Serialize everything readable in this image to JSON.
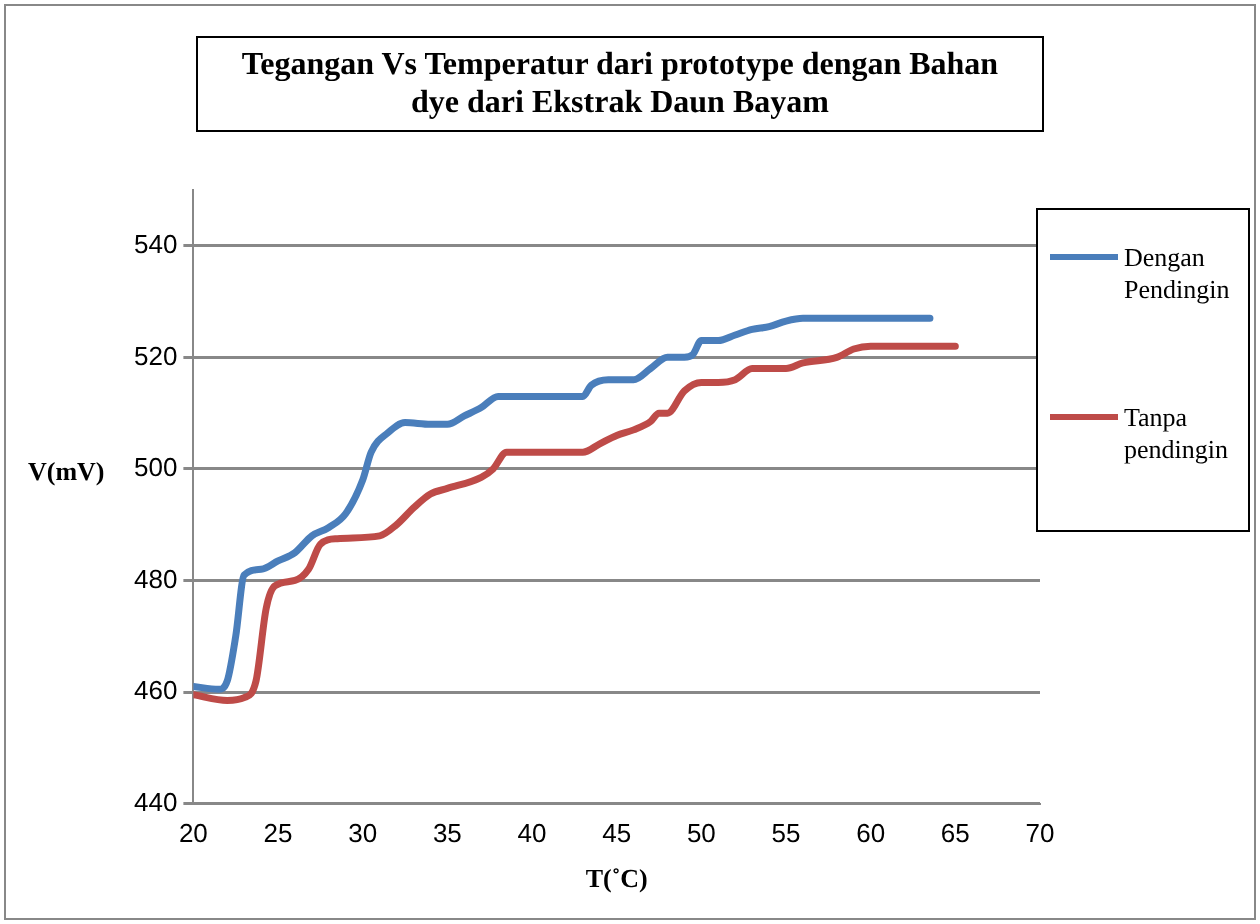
{
  "chart_data": {
    "type": "line",
    "title": "Tegangan Vs Temperatur dari prototype dengan Bahan dye dari Ekstrak  Daun Bayam",
    "xlabel": "T(˚C)",
    "ylabel": "V(mV)",
    "xlim": [
      20,
      70
    ],
    "xticks": [
      20,
      25,
      30,
      35,
      40,
      45,
      50,
      55,
      60,
      65,
      70
    ],
    "ylim": [
      440,
      550
    ],
    "yticks": [
      440,
      460,
      480,
      500,
      520,
      540
    ],
    "grid": "y",
    "legend": "right",
    "marker": "none",
    "line_style": "solid",
    "series": [
      {
        "name": "Dengan Pendingin",
        "color": "#4a7ebb",
        "x": [
          20,
          21.5,
          22,
          22.5,
          23,
          24,
          25,
          26,
          27,
          28,
          29,
          30,
          30.5,
          31.5,
          32.5,
          34,
          35,
          36,
          37,
          38,
          40,
          42,
          43,
          43.5,
          44.5,
          46,
          47,
          48,
          49,
          49.5,
          50,
          51,
          52,
          53,
          54,
          55,
          56,
          58,
          63.5
        ],
        "values": [
          461,
          460.5,
          462,
          470,
          481,
          482,
          483.5,
          485,
          488,
          489.5,
          492,
          498,
          503,
          506.5,
          508.3,
          508,
          508,
          509.5,
          511,
          513,
          513,
          513,
          513,
          515,
          516,
          516,
          518,
          520,
          520,
          520.5,
          523,
          523,
          524,
          525,
          525.5,
          526.5,
          527,
          527,
          527
        ]
      },
      {
        "name": "Tanpa pendingin",
        "color": "#be4b48",
        "x": [
          20,
          22,
          23,
          23.7,
          24.3,
          24.8,
          26,
          26.8,
          27.5,
          28.5,
          31,
          32,
          33,
          34,
          35,
          37,
          37.7,
          38.5,
          40,
          43,
          44,
          45,
          46,
          47,
          47.5,
          48,
          49,
          50,
          51,
          52,
          53,
          55,
          56,
          58,
          59,
          60,
          65
        ],
        "values": [
          459.5,
          458.5,
          459,
          462,
          475,
          479,
          480,
          482,
          486.5,
          487.5,
          488,
          490,
          493,
          495.5,
          496.5,
          498.5,
          500,
          503,
          503,
          503,
          504.5,
          506,
          507,
          508.5,
          510,
          510,
          514,
          515.5,
          515.5,
          516,
          518,
          518,
          519,
          520,
          521.5,
          522,
          522
        ]
      }
    ]
  }
}
